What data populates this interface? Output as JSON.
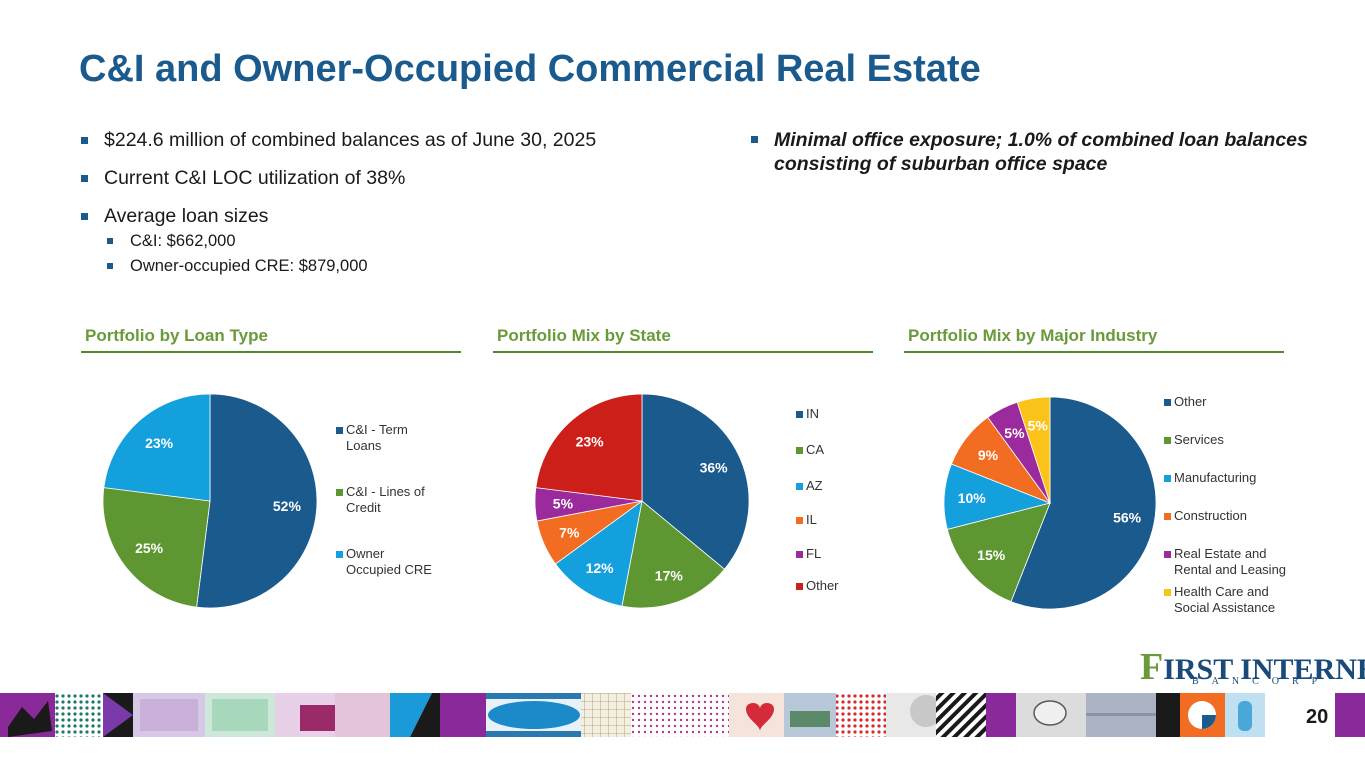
{
  "title": "C&I and Owner-Occupied Commercial Real Estate",
  "bullets_left": [
    "$224.6 million of combined balances as of June 30, 2025",
    "Current C&I LOC utilization of 38%",
    "Average loan sizes"
  ],
  "sub_bullets": [
    "C&I: $662,000",
    "Owner-occupied CRE: $879,000"
  ],
  "bullet_right": "Minimal office exposure; 1.0% of combined loan balances consisting of suburban office space",
  "section_headers": [
    "Portfolio by Loan Type",
    "Portfolio Mix by State",
    "Portfolio Mix by Major Industry"
  ],
  "colors": {
    "title": "#1a5a8c",
    "section_header": "#6a9a3a",
    "section_rule": "#4f8a2c"
  },
  "chart_data": [
    {
      "type": "pie",
      "title": "Portfolio by Loan Type",
      "categories": [
        "C&I - Term Loans",
        "C&I - Lines of Credit",
        "Owner Occupied CRE"
      ],
      "legend_lines": [
        [
          "C&I - Term",
          "Loans"
        ],
        [
          "C&I - Lines of",
          "Credit"
        ],
        [
          "Owner",
          "Occupied CRE"
        ]
      ],
      "values": [
        52,
        25,
        23
      ],
      "labels": [
        "52%",
        "25%",
        "23%"
      ],
      "colors": [
        "#1a5a8c",
        "#5e9632",
        "#14a0dc"
      ],
      "legend_position": "right"
    },
    {
      "type": "pie",
      "title": "Portfolio Mix by State",
      "categories": [
        "IN",
        "CA",
        "AZ",
        "IL",
        "FL",
        "Other"
      ],
      "legend_lines": [
        [
          "IN"
        ],
        [
          "CA"
        ],
        [
          "AZ"
        ],
        [
          "IL"
        ],
        [
          "FL"
        ],
        [
          "Other"
        ]
      ],
      "values": [
        36,
        17,
        12,
        7,
        5,
        23
      ],
      "labels": [
        "36%",
        "17%",
        "12%",
        "7%",
        "5%",
        "23%"
      ],
      "colors": [
        "#1a5a8c",
        "#5e9632",
        "#14a0dc",
        "#f26d21",
        "#9b2a9c",
        "#cc1f1a"
      ],
      "legend_position": "right"
    },
    {
      "type": "pie",
      "title": "Portfolio Mix by Major Industry",
      "categories": [
        "Other",
        "Services",
        "Manufacturing",
        "Construction",
        "Real Estate and Rental and Leasing",
        "Health Care and Social Assistance"
      ],
      "legend_lines": [
        [
          "Other"
        ],
        [
          "Services"
        ],
        [
          "Manufacturing"
        ],
        [
          "Construction"
        ],
        [
          "Real Estate and",
          "Rental and Leasing"
        ],
        [
          "Health Care and",
          "Social Assistance"
        ]
      ],
      "values": [
        56,
        15,
        10,
        9,
        5,
        5
      ],
      "labels": [
        "56%",
        "15%",
        "10%",
        "9%",
        "5%",
        "5%"
      ],
      "colors": [
        "#1a5a8c",
        "#5e9632",
        "#14a0dc",
        "#f26d21",
        "#9b2a9c",
        "#fbc21a"
      ],
      "legend_position": "right"
    }
  ],
  "logo": {
    "main_first": "F",
    "main_rest": "IRST INTERNET",
    "sub": "BANCORP"
  },
  "page_number": "20"
}
